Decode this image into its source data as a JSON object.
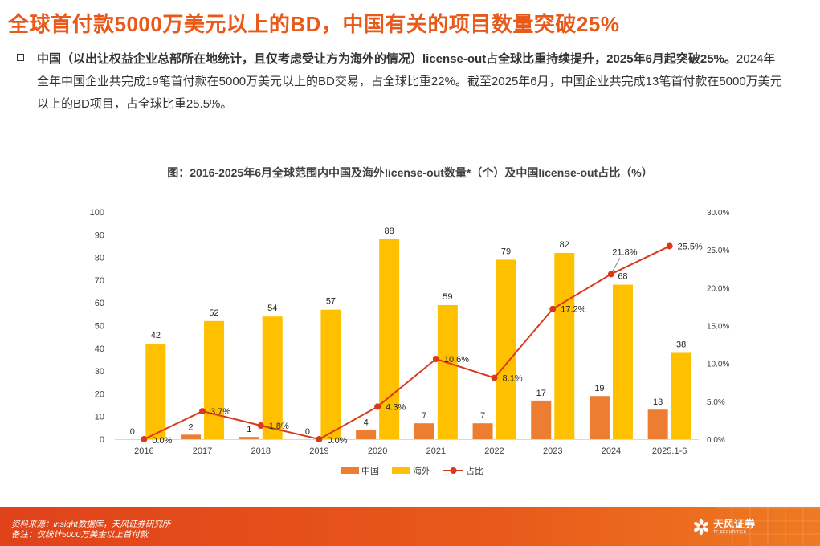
{
  "page": {
    "title": "全球首付款5000万美元以上的BD，中国有关的项目数量突破25%",
    "bullet_lead": "中国（以出让权益企业总部所在地统计，且仅考虑受让方为海外的情况）license-out占全球比重持续提升，2025年6月起突破25%。",
    "bullet_body": "2024年全年中国企业共完成19笔首付款在5000万美元以上的BD交易，占全球比重22%。截至2025年6月，中国企业共完成13笔首付款在5000万美元以上的BD项目，占全球比重25.5%。"
  },
  "footer": {
    "source": "资料来源：insight数据库，天风证券研究所",
    "note": "备注：仅统计5000万美金以上首付款",
    "brand_name": "天风证券",
    "brand_sub": "TF SECURITIES"
  },
  "colors": {
    "china": "#ED7D31",
    "overseas": "#FFC000",
    "share": "#D9391A",
    "accent": "#E8591A"
  },
  "chart_data": {
    "type": "bar",
    "title": "图：2016-2025年6月全球范围内中国及海外license-out数量*（个）及中国license-out占比（%）",
    "categories": [
      "2016",
      "2017",
      "2018",
      "2019",
      "2020",
      "2021",
      "2022",
      "2023",
      "2024",
      "2025.1-6"
    ],
    "series": [
      {
        "name": "中国",
        "kind": "bar",
        "axis": "left",
        "values": [
          0,
          2,
          1,
          0,
          4,
          7,
          7,
          17,
          19,
          13
        ]
      },
      {
        "name": "海外",
        "kind": "bar",
        "axis": "left",
        "values": [
          42,
          52,
          54,
          57,
          88,
          59,
          79,
          82,
          68,
          38
        ]
      },
      {
        "name": "占比",
        "kind": "line",
        "axis": "right",
        "values": [
          0.0,
          3.7,
          1.8,
          0.0,
          4.3,
          10.6,
          8.1,
          17.2,
          21.8,
          25.5
        ],
        "labels": [
          "0.0%",
          "3.7%",
          "1.8%",
          "0.0%",
          "4.3%",
          "10.6%",
          "8.1%",
          "17.2%",
          "21.8%",
          "25.5%"
        ]
      }
    ],
    "y_left": {
      "min": 0,
      "max": 100,
      "ticks": [
        "0",
        "10",
        "20",
        "30",
        "40",
        "50",
        "60",
        "70",
        "80",
        "90",
        "100"
      ]
    },
    "y_right": {
      "min": 0,
      "max": 30,
      "ticks": [
        "0.0%",
        "5.0%",
        "10.0%",
        "15.0%",
        "20.0%",
        "25.0%",
        "30.0%"
      ]
    },
    "grid": false,
    "legend_position": "bottom"
  }
}
